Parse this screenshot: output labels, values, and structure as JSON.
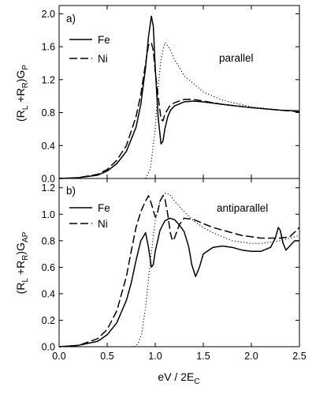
{
  "chart_data": [
    {
      "type": "line",
      "panel_tag": "a)",
      "mode_label": "parallel",
      "ylabel": {
        "lead": "(R",
        "sub1": "L",
        "mid": " +R",
        "sub2": "R",
        "tail": ")G",
        "sub3": "P"
      },
      "xlim": [
        0,
        2.5
      ],
      "ylim": [
        0,
        2.1
      ],
      "yticks": [
        "0.0",
        "0.4",
        "0.8",
        "1.2",
        "1.6",
        "2.0"
      ],
      "ytick_values": [
        0.0,
        0.4,
        0.8,
        1.2,
        1.6,
        2.0
      ],
      "legend": {
        "placement": "top-left",
        "entries": [
          "Fe",
          "Ni"
        ]
      },
      "series": [
        {
          "name": "Fe",
          "style": "solid",
          "x": [
            0.0,
            0.2,
            0.4,
            0.5,
            0.6,
            0.7,
            0.8,
            0.85,
            0.9,
            0.93,
            0.96,
            0.98,
            1.0,
            1.03,
            1.06,
            1.08,
            1.1,
            1.13,
            1.16,
            1.2,
            1.3,
            1.4,
            1.5,
            1.7,
            2.0,
            2.3,
            2.5
          ],
          "y": [
            0.0,
            0.01,
            0.04,
            0.09,
            0.18,
            0.33,
            0.62,
            0.9,
            1.35,
            1.72,
            1.97,
            1.85,
            1.35,
            0.75,
            0.42,
            0.45,
            0.6,
            0.75,
            0.83,
            0.88,
            0.93,
            0.94,
            0.93,
            0.9,
            0.86,
            0.83,
            0.82
          ]
        },
        {
          "name": "Ni",
          "style": "dashed",
          "x": [
            0.0,
            0.2,
            0.4,
            0.5,
            0.6,
            0.7,
            0.8,
            0.85,
            0.9,
            0.93,
            0.96,
            0.98,
            1.0,
            1.03,
            1.06,
            1.08,
            1.1,
            1.15,
            1.2,
            1.3,
            1.4,
            1.5,
            1.7,
            2.0,
            2.3,
            2.5
          ],
          "y": [
            0.0,
            0.01,
            0.05,
            0.11,
            0.22,
            0.4,
            0.75,
            1.02,
            1.4,
            1.62,
            1.65,
            1.55,
            1.3,
            1.0,
            0.72,
            0.7,
            0.78,
            0.88,
            0.92,
            0.96,
            0.96,
            0.94,
            0.9,
            0.86,
            0.83,
            0.81
          ]
        },
        {
          "name": "",
          "style": "dotted",
          "x": [
            0.9,
            0.95,
            1.0,
            1.03,
            1.06,
            1.1,
            1.15,
            1.2,
            1.3,
            1.5,
            1.7,
            2.0,
            2.3,
            2.5
          ],
          "y": [
            0.0,
            0.12,
            0.6,
            1.1,
            1.45,
            1.65,
            1.58,
            1.45,
            1.25,
            1.05,
            0.95,
            0.87,
            0.83,
            0.82
          ]
        }
      ]
    },
    {
      "type": "line",
      "panel_tag": "b)",
      "mode_label": "antiparallel",
      "ylabel": {
        "lead": "(R",
        "sub1": "L",
        "mid": " +R",
        "sub2": "R",
        "tail": ")G",
        "sub3": "AP"
      },
      "xlabel": {
        "lead": "eV / 2E",
        "sub": "C"
      },
      "xlim": [
        0,
        2.5
      ],
      "ylim": [
        0,
        1.27
      ],
      "xticks": [
        "0.0",
        "0.5",
        "1.0",
        "1.5",
        "2.0",
        "2.5"
      ],
      "xtick_values": [
        0.0,
        0.5,
        1.0,
        1.5,
        2.0,
        2.5
      ],
      "yticks": [
        "0.0",
        "0.2",
        "0.4",
        "0.6",
        "0.8",
        "1.0",
        "1.2"
      ],
      "ytick_values": [
        0.0,
        0.2,
        0.4,
        0.6,
        0.8,
        1.0,
        1.2
      ],
      "legend": {
        "placement": "top-left",
        "entries": [
          "Fe",
          "Ni"
        ]
      },
      "series": [
        {
          "name": "Fe",
          "style": "solid",
          "x": [
            0.0,
            0.2,
            0.4,
            0.5,
            0.6,
            0.7,
            0.75,
            0.8,
            0.85,
            0.9,
            0.93,
            0.96,
            0.98,
            1.0,
            1.05,
            1.1,
            1.15,
            1.2,
            1.25,
            1.3,
            1.35,
            1.38,
            1.42,
            1.46,
            1.5,
            1.6,
            1.7,
            1.8,
            1.9,
            2.0,
            2.1,
            2.2,
            2.25,
            2.28,
            2.3,
            2.33,
            2.36,
            2.4,
            2.45,
            2.5
          ],
          "y": [
            0.0,
            0.01,
            0.04,
            0.09,
            0.18,
            0.35,
            0.48,
            0.65,
            0.8,
            0.86,
            0.75,
            0.6,
            0.62,
            0.72,
            0.88,
            0.95,
            0.97,
            0.96,
            0.92,
            0.87,
            0.75,
            0.62,
            0.53,
            0.6,
            0.7,
            0.75,
            0.76,
            0.75,
            0.73,
            0.72,
            0.72,
            0.75,
            0.82,
            0.9,
            0.88,
            0.78,
            0.73,
            0.76,
            0.8,
            0.8
          ]
        },
        {
          "name": "Ni",
          "style": "dashed",
          "x": [
            0.0,
            0.2,
            0.4,
            0.5,
            0.6,
            0.7,
            0.75,
            0.8,
            0.85,
            0.9,
            0.93,
            0.96,
            1.0,
            1.02,
            1.05,
            1.08,
            1.1,
            1.13,
            1.16,
            1.18,
            1.2,
            1.25,
            1.3,
            1.4,
            1.5,
            1.6,
            1.7,
            1.8,
            1.9,
            2.0,
            2.1,
            2.2,
            2.3,
            2.4,
            2.5
          ],
          "y": [
            0.0,
            0.01,
            0.06,
            0.13,
            0.27,
            0.53,
            0.72,
            0.9,
            1.02,
            1.1,
            1.14,
            1.08,
            0.98,
            1.0,
            1.1,
            1.14,
            1.12,
            1.0,
            0.85,
            0.8,
            0.82,
            0.92,
            0.97,
            0.96,
            0.93,
            0.9,
            0.88,
            0.86,
            0.84,
            0.83,
            0.82,
            0.82,
            0.82,
            0.83,
            0.9
          ]
        },
        {
          "name": "",
          "style": "dotted",
          "x": [
            0.78,
            0.82,
            0.86,
            0.9,
            0.95,
            1.0,
            1.05,
            1.1,
            1.15,
            1.2,
            1.3,
            1.4,
            1.5,
            1.6,
            1.7,
            1.8,
            1.9,
            2.0,
            2.1,
            2.2,
            2.3,
            2.4,
            2.5
          ],
          "y": [
            0.0,
            0.02,
            0.1,
            0.3,
            0.65,
            0.95,
            1.1,
            1.16,
            1.15,
            1.1,
            1.02,
            0.95,
            0.9,
            0.86,
            0.83,
            0.8,
            0.79,
            0.78,
            0.78,
            0.79,
            0.8,
            0.82,
            0.84
          ]
        }
      ]
    }
  ]
}
